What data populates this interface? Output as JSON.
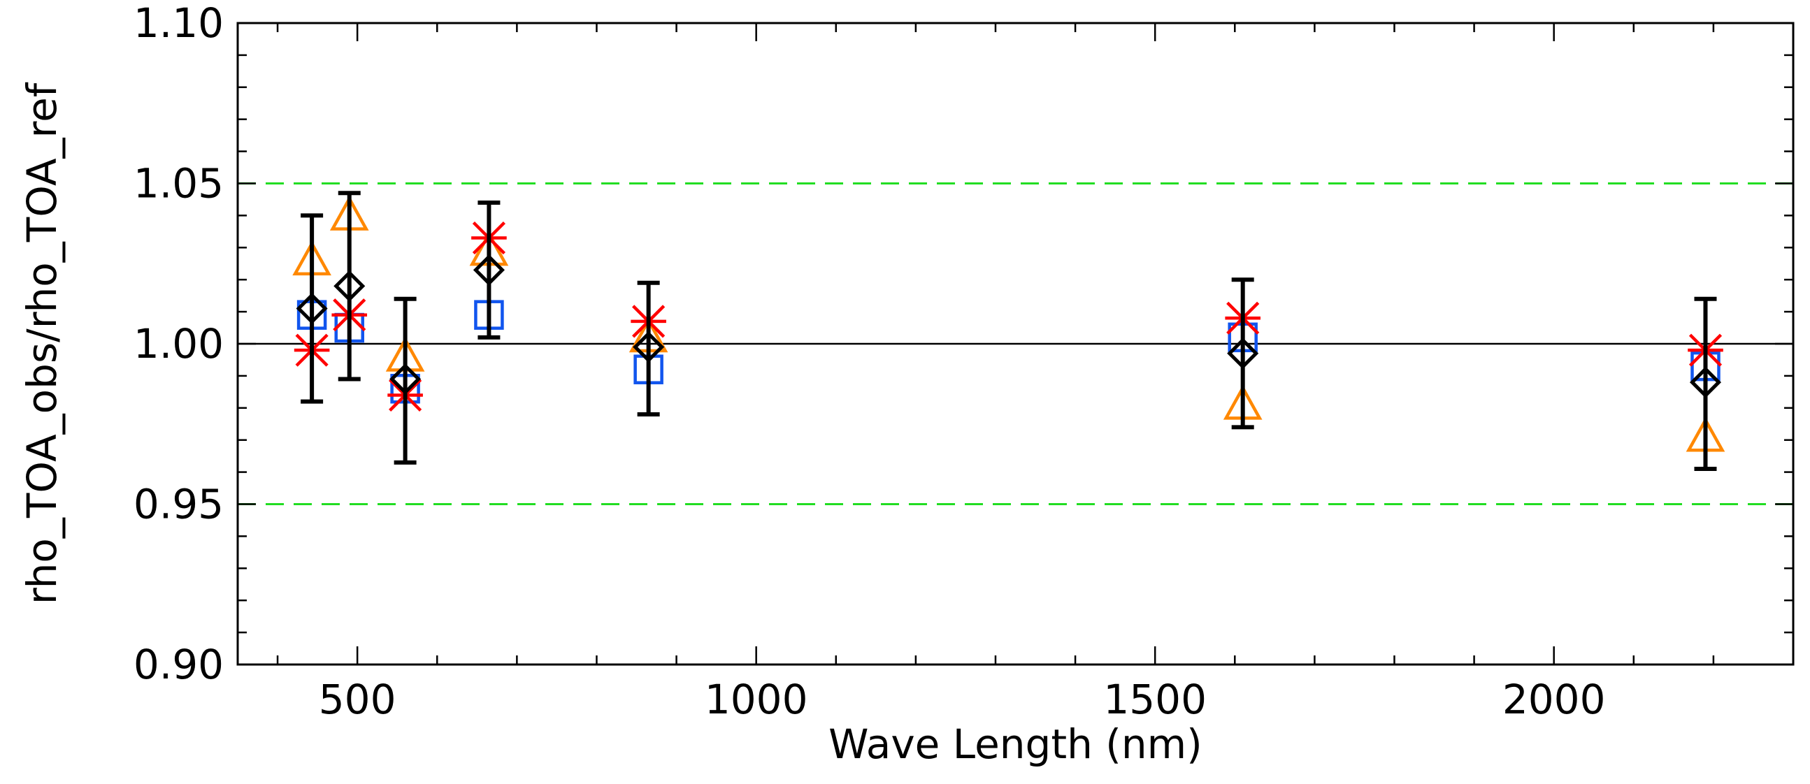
{
  "chart_data": {
    "type": "scatter",
    "xlabel": "Wave Length (nm)",
    "ylabel": "rho_TOA_obs/rho_TOA_ref",
    "xlim": [
      350,
      2300
    ],
    "ylim": [
      0.9,
      1.1
    ],
    "x_ticks": [
      500,
      1000,
      1500,
      2000
    ],
    "x_minor_step": 100,
    "y_ticks": [
      "0.90",
      "0.95",
      "1.00",
      "1.05",
      "1.10"
    ],
    "y_minor_step": 0.01,
    "reference_lines": [
      {
        "y": 1.0,
        "color": "#000000",
        "style": "solid"
      },
      {
        "y": 1.05,
        "color": "#22dd22",
        "style": "dashed"
      },
      {
        "y": 0.95,
        "color": "#22dd22",
        "style": "dashed"
      },
      {
        "y": 1.1,
        "color": "#dd0000",
        "style": "dashed"
      },
      {
        "y": 0.9,
        "color": "#dd0000",
        "style": "dashed"
      }
    ],
    "series": [
      {
        "marker": "asterisk",
        "color": "#ff0000",
        "points": [
          [
            443,
            0.998
          ],
          [
            490,
            1.009
          ],
          [
            560,
            0.984
          ],
          [
            665,
            1.033
          ],
          [
            865,
            1.007
          ],
          [
            1610,
            1.008
          ],
          [
            2190,
            0.998
          ]
        ]
      },
      {
        "marker": "triangle",
        "color": "#ff8800",
        "points": [
          [
            443,
            1.026
          ],
          [
            490,
            1.04
          ],
          [
            560,
            0.996
          ],
          [
            665,
            1.029
          ],
          [
            865,
            1.002
          ],
          [
            1610,
            0.981
          ],
          [
            2190,
            0.971
          ]
        ]
      },
      {
        "marker": "square",
        "color": "#1155ee",
        "points": [
          [
            443,
            1.009
          ],
          [
            490,
            1.005
          ],
          [
            560,
            0.986
          ],
          [
            665,
            1.009
          ],
          [
            865,
            0.992
          ],
          [
            1610,
            1.002
          ],
          [
            2190,
            0.993
          ]
        ]
      },
      {
        "marker": "diamond",
        "color": "#000000",
        "points": [
          [
            443,
            1.011
          ],
          [
            490,
            1.018
          ],
          [
            560,
            0.989
          ],
          [
            665,
            1.023
          ],
          [
            865,
            0.999
          ],
          [
            1610,
            0.997
          ],
          [
            2190,
            0.988
          ]
        ],
        "error_low": [
          0.982,
          0.989,
          0.963,
          1.002,
          0.978,
          0.974,
          0.961
        ],
        "error_high": [
          1.04,
          1.047,
          1.014,
          1.044,
          1.019,
          1.02,
          1.014
        ]
      }
    ]
  }
}
